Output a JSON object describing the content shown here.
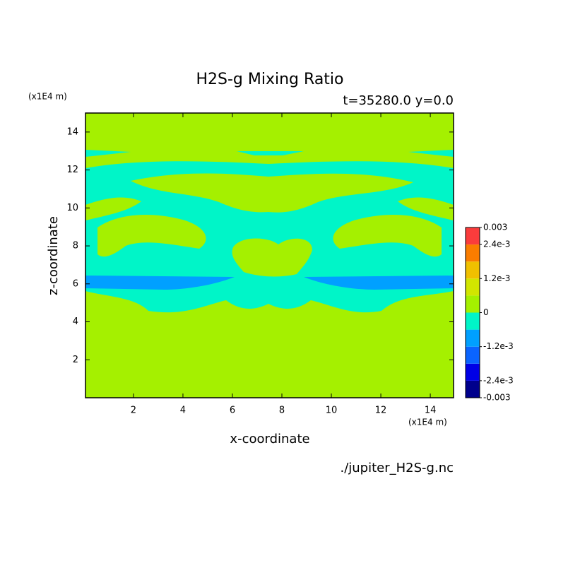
{
  "chart_data": {
    "type": "contour",
    "title": "H2S-g Mixing Ratio",
    "subtitle": "t=35280.0 y=0.0",
    "x_label": "x-coordinate",
    "y_label": "z-coordinate",
    "x_unit": "(x1E4 m)",
    "y_unit": "(x1E4 m)",
    "source": "./jupiter_H2S-g.nc",
    "xlim": [
      0.06,
      14.94
    ],
    "ylim": [
      0,
      15
    ],
    "xticks": [
      2,
      4,
      6,
      8,
      10,
      12,
      14
    ],
    "yticks": [
      2,
      4,
      6,
      8,
      10,
      12,
      14
    ],
    "colorbar": {
      "bounds": [
        -0.003,
        -0.0024,
        -0.0018,
        -0.0012,
        -0.0006,
        0,
        0.0006,
        0.0012,
        0.0018,
        0.0024,
        0.003
      ],
      "colors": [
        "#00008c",
        "#0000e6",
        "#0a64ff",
        "#00a0ff",
        "#00f5c8",
        "#a5f000",
        "#d2e600",
        "#f0c000",
        "#fa7d00",
        "#fa3c3c"
      ],
      "ticks": [
        -0.003,
        {
          "value": -0.0024,
          "label": "-2.4e-3"
        },
        {
          "value": -0.0012,
          "label": "-1.2e-3"
        },
        0,
        {
          "value": 0.0012,
          "label": "1.2e-3"
        },
        {
          "value": 0.0024,
          "label": "2.4e-3"
        },
        0.003
      ]
    }
  }
}
